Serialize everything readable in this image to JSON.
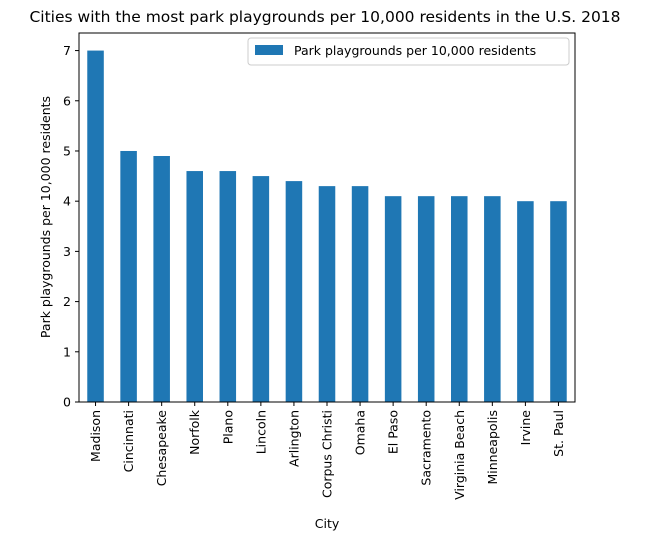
{
  "chart_data": {
    "type": "bar",
    "title": "Cities with the most park playgrounds per 10,000 residents in the U.S. 2018",
    "xlabel": "City",
    "ylabel": "Park playgrounds per 10,000 residents",
    "categories": [
      "Madison",
      "Cincinnati",
      "Chesapeake",
      "Norfolk",
      "Plano",
      "Lincoln",
      "Arlington",
      "Corpus Christi",
      "Omaha",
      "El Paso",
      "Sacramento",
      "Virginia Beach",
      "Minneapolis",
      "Irvine",
      "St. Paul"
    ],
    "series": [
      {
        "name": "Park playgrounds per 10,000 residents",
        "values": [
          7.0,
          5.0,
          4.9,
          4.6,
          4.6,
          4.5,
          4.4,
          4.3,
          4.3,
          4.1,
          4.1,
          4.1,
          4.1,
          4.0,
          4.0
        ],
        "color": "#1f77b4"
      }
    ],
    "ylim": [
      0,
      7.35
    ],
    "yticks": [
      0,
      1,
      2,
      3,
      4,
      5,
      6,
      7
    ],
    "legend_position": "top-right",
    "grid": false
  }
}
